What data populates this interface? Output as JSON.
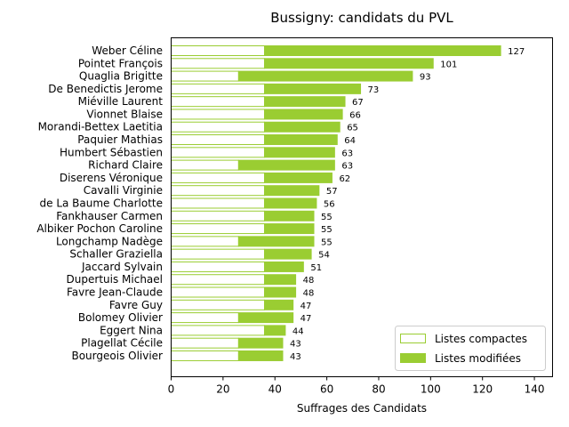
{
  "chart_data": {
    "type": "bar",
    "orientation": "horizontal",
    "stacked": true,
    "title": "Bussigny: candidats du PVL",
    "xlabel": "Suffrages des Candidats",
    "ylabel": "",
    "xlim": [
      0,
      147
    ],
    "xticks": [
      0,
      20,
      40,
      60,
      80,
      100,
      120,
      140
    ],
    "legend_position": "bottom-right",
    "colors": {
      "compact": "#ffffff",
      "compact_edge": "#9acd32",
      "modified": "#9acd32"
    },
    "categories": [
      "Weber Céline",
      "Pointet François",
      "Quaglia Brigitte",
      "De Benedictis Jerome",
      "Miéville Laurent",
      "Vionnet Blaise",
      "Morandi-Bettex Laetitia",
      "Paquier Mathias",
      "Humbert Sébastien",
      "Richard Claire",
      "Diserens Véronique",
      "Cavalli Virginie",
      "de La Baume Charlotte",
      "Fankhauser Carmen",
      "Albiker Pochon Caroline",
      "Longchamp Nadège",
      "Schaller Graziella",
      "Jaccard Sylvain",
      "Dupertuis Michael",
      "Favre Jean-Claude",
      "Favre Guy",
      "Bolomey Olivier",
      "Eggert Nina",
      "Plagellat Cécile",
      "Bourgeois Olivier"
    ],
    "series": [
      {
        "name": "Listes compactes",
        "values": [
          36,
          36,
          26,
          36,
          36,
          36,
          36,
          36,
          36,
          26,
          36,
          36,
          36,
          36,
          36,
          26,
          36,
          36,
          36,
          36,
          36,
          26,
          36,
          26,
          26
        ]
      },
      {
        "name": "Listes modifiées",
        "values": [
          91,
          65,
          67,
          37,
          31,
          30,
          29,
          28,
          27,
          37,
          26,
          21,
          20,
          19,
          19,
          29,
          18,
          15,
          12,
          12,
          11,
          21,
          8,
          17,
          17
        ]
      }
    ],
    "totals": [
      127,
      101,
      93,
      73,
      67,
      66,
      65,
      64,
      63,
      63,
      62,
      57,
      56,
      55,
      55,
      55,
      54,
      51,
      48,
      48,
      47,
      47,
      44,
      43,
      43
    ]
  }
}
